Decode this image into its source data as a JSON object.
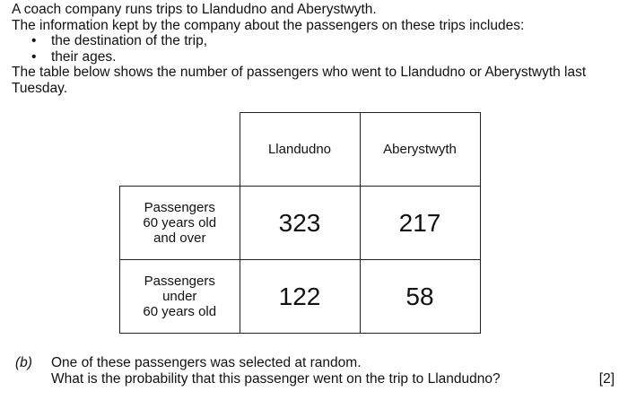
{
  "intro": {
    "line1": "A coach company runs trips to Llandudno and Aberystwyth.",
    "line2": "The information kept by the company about the passengers on these trips includes:",
    "bullets": [
      "the destination of the trip,",
      "their ages."
    ],
    "bullet_symbol": "•",
    "line3": "The table below shows the number of passengers who went to Llandudno or Aberystwyth last Tuesday."
  },
  "table": {
    "columns": [
      "Llandudno",
      "Aberystwyth"
    ],
    "rows": [
      {
        "label_lines": [
          "Passengers",
          "60 years old",
          "and over"
        ],
        "values": [
          "323",
          "217"
        ]
      },
      {
        "label_lines": [
          "Passengers",
          "under",
          "60 years old"
        ],
        "values": [
          "122",
          "58"
        ]
      }
    ]
  },
  "question": {
    "part": "(b)",
    "line1": "One of these passengers was selected at random.",
    "line2": "What is the probability that this passenger went on the trip to Llandudno?",
    "marks": "[2]"
  }
}
